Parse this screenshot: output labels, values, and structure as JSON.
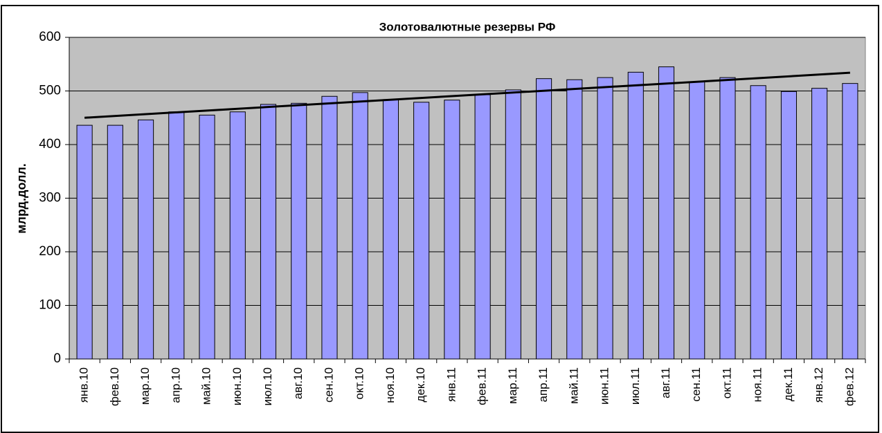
{
  "chart_data": {
    "type": "bar",
    "title": "Золотовалютные резервы РФ",
    "y_label": "млрд.долл.",
    "categories": [
      "янв.10",
      "фев.10",
      "мар.10",
      "апр.10",
      "май.10",
      "июн.10",
      "июл.10",
      "авг.10",
      "сен.10",
      "окт.10",
      "ноя.10",
      "дек.10",
      "янв.11",
      "фев.11",
      "мар.11",
      "апр.11",
      "май.11",
      "июн.11",
      "июл.11",
      "авг.11",
      "сен.11",
      "окт.11",
      "ноя.11",
      "дек.11",
      "янв.12",
      "фев.12"
    ],
    "values": [
      436,
      436,
      446,
      461,
      455,
      461,
      475,
      477,
      490,
      497,
      484,
      479,
      483,
      493,
      502,
      523,
      521,
      525,
      535,
      545,
      517,
      525,
      510,
      499,
      505,
      514
    ],
    "color": "#9999ff",
    "trendline": {
      "color": "#000000",
      "values": [
        450,
        534
      ]
    },
    "ylim": [
      0,
      600
    ],
    "yticks": [
      0,
      100,
      200,
      300,
      400,
      500,
      600
    ],
    "grid": true
  }
}
